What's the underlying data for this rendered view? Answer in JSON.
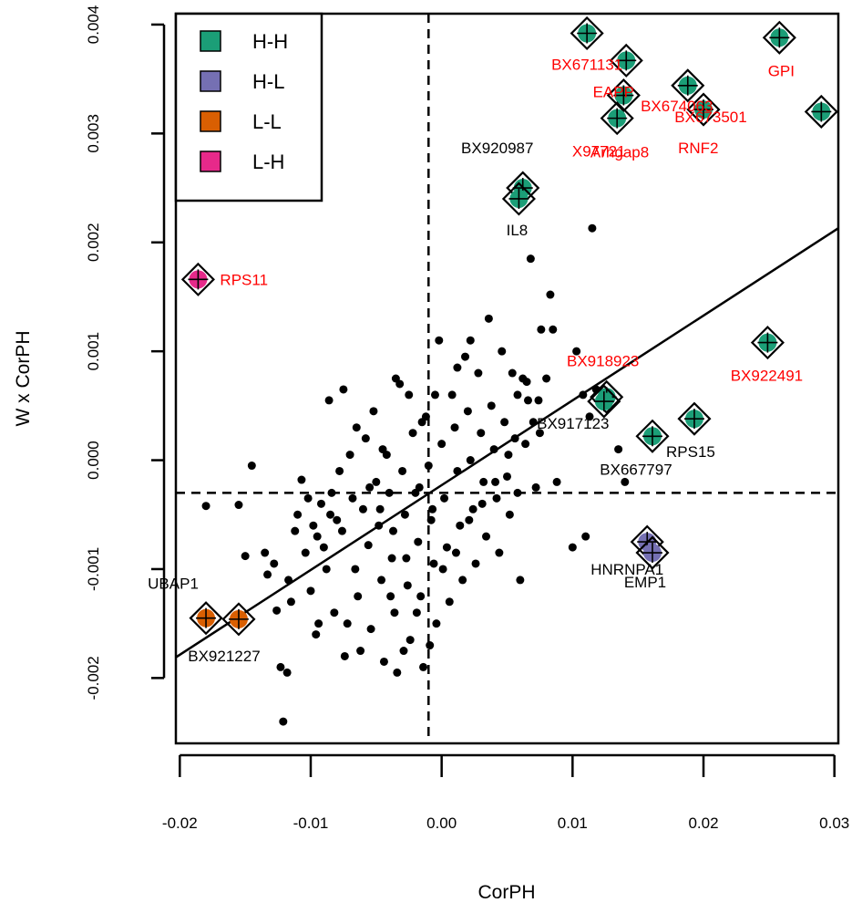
{
  "chart_data": {
    "type": "scatter",
    "xlabel": "CorPH",
    "ylabel": "W x CorPH",
    "xlim": [
      -0.0203,
      0.0303
    ],
    "ylim": [
      -0.0026,
      0.0041
    ],
    "x_ticks": [
      "-0.02",
      "-0.01",
      "0.00",
      "0.01",
      "0.02",
      "0.03"
    ],
    "x_tick_values": [
      -0.02,
      -0.01,
      0.0,
      0.01,
      0.02,
      0.03
    ],
    "y_ticks": [
      "-0.002",
      "-0.001",
      "0.000",
      "0.001",
      "0.002",
      "0.003",
      "0.004"
    ],
    "y_tick_values": [
      -0.002,
      -0.001,
      0.0,
      0.001,
      0.002,
      0.003,
      0.004
    ],
    "reference_lines": {
      "vertical_x": -0.001,
      "horizontal_y": -0.0003
    },
    "regression_line": {
      "x": [
        -0.0203,
        0.0303
      ],
      "y": [
        -0.00181,
        0.00213
      ]
    },
    "legend": {
      "position": "top-left",
      "items": [
        {
          "label": "H-H",
          "color": "#1b9e77"
        },
        {
          "label": "H-L",
          "color": "#7570b3"
        },
        {
          "label": "L-L",
          "color": "#d95f02"
        },
        {
          "label": "L-H",
          "color": "#e7298a"
        }
      ]
    },
    "label_colors": {
      "red": "#ff0000",
      "black": "#000000"
    },
    "highlighted": [
      {
        "group": "H-H",
        "x": 0.0111,
        "y": 0.00392,
        "label": "BX671131",
        "label_color": "red"
      },
      {
        "group": "H-H",
        "x": 0.0141,
        "y": 0.00367,
        "label": "EAPP",
        "label_color": "red"
      },
      {
        "group": "H-H",
        "x": 0.0139,
        "y": 0.00335,
        "label": "",
        "label_color": "red"
      },
      {
        "group": "H-H",
        "x": 0.0134,
        "y": 0.00314,
        "label": "X97721",
        "label_color": "red"
      },
      {
        "group": "H-H",
        "x": 0.0188,
        "y": 0.00344,
        "label": "BX674063",
        "label_color": "red"
      },
      {
        "group": "H-H",
        "x": 0.02,
        "y": 0.00322,
        "label": "BX673501",
        "label_color": "red"
      },
      {
        "group": "H-H",
        "x": 0.0258,
        "y": 0.00388,
        "label": "GPI",
        "label_color": "red"
      },
      {
        "group": "H-H",
        "x": 0.029,
        "y": 0.0032,
        "label": "",
        "label_color": "red"
      },
      {
        "group": "H-H",
        "x": 0.0062,
        "y": 0.0025,
        "label": "BX920987",
        "label_color": "black"
      },
      {
        "group": "H-H",
        "x": 0.0059,
        "y": 0.0024,
        "label": "IL8",
        "label_color": "black"
      },
      {
        "group": "H-H",
        "x": 0.0126,
        "y": 0.00058,
        "label": "BX918923",
        "label_color": "red"
      },
      {
        "group": "H-H",
        "x": 0.0124,
        "y": 0.00054,
        "label": "BX917123",
        "label_color": "black"
      },
      {
        "group": "H-H",
        "x": 0.0249,
        "y": 0.00108,
        "label": "BX922491",
        "label_color": "red"
      },
      {
        "group": "H-H",
        "x": 0.0193,
        "y": 0.00038,
        "label": "RPS15",
        "label_color": "black"
      },
      {
        "group": "H-H",
        "x": 0.0161,
        "y": 0.00022,
        "label": "BX667797",
        "label_color": "black"
      },
      {
        "group": "H-L",
        "x": 0.0157,
        "y": -0.00075,
        "label": "HNRNPA1",
        "label_color": "black"
      },
      {
        "group": "H-L",
        "x": 0.0161,
        "y": -0.00085,
        "label": "EMP1",
        "label_color": "black"
      },
      {
        "group": "L-H",
        "x": -0.0186,
        "y": 0.00166,
        "label": "RPS11",
        "label_color": "red"
      },
      {
        "group": "L-L",
        "x": -0.018,
        "y": -0.00145,
        "label": "UBAP1",
        "label_color": "black"
      },
      {
        "group": "L-L",
        "x": -0.0155,
        "y": -0.00146,
        "label": "BX921227",
        "label_color": "black"
      }
    ],
    "extra_labels": [
      {
        "text": "Arhgap8",
        "x": 0.0136,
        "y": 0.00278,
        "label_color": "red"
      },
      {
        "text": "RNF2",
        "x": 0.0196,
        "y": 0.00282,
        "label_color": "red"
      }
    ],
    "points": [
      [
        -0.018,
        -0.00042
      ],
      [
        -0.0155,
        -0.00041
      ],
      [
        -0.0145,
        -5e-05
      ],
      [
        -0.015,
        -0.00088
      ],
      [
        -0.0135,
        -0.00085
      ],
      [
        -0.0133,
        -0.00105
      ],
      [
        -0.0128,
        -0.00095
      ],
      [
        -0.0126,
        -0.00138
      ],
      [
        -0.0123,
        -0.0019
      ],
      [
        -0.0118,
        -0.00195
      ],
      [
        -0.0121,
        -0.0024
      ],
      [
        -0.0117,
        -0.0011
      ],
      [
        -0.0115,
        -0.0013
      ],
      [
        -0.0112,
        -0.00065
      ],
      [
        -0.011,
        -0.0005
      ],
      [
        -0.0107,
        -0.00018
      ],
      [
        -0.0104,
        -0.00085
      ],
      [
        -0.0102,
        -0.00035
      ],
      [
        -0.01,
        -0.0012
      ],
      [
        -0.0098,
        -0.0006
      ],
      [
        -0.0096,
        -0.0016
      ],
      [
        -0.0094,
        -0.0015
      ],
      [
        -0.0092,
        -0.0004
      ],
      [
        -0.009,
        -0.0008
      ],
      [
        -0.0088,
        -0.001
      ],
      [
        -0.0086,
        0.00055
      ],
      [
        -0.0084,
        -0.0003
      ],
      [
        -0.0082,
        -0.0014
      ],
      [
        -0.008,
        -0.00055
      ],
      [
        -0.0078,
        -0.0001
      ],
      [
        -0.0076,
        -0.00065
      ],
      [
        -0.0074,
        -0.0018
      ],
      [
        -0.0072,
        -0.0015
      ],
      [
        -0.007,
        5e-05
      ],
      [
        -0.0068,
        -0.00035
      ],
      [
        -0.0066,
        -0.001
      ],
      [
        -0.0064,
        -0.00125
      ],
      [
        -0.0062,
        -0.00175
      ],
      [
        -0.006,
        -0.00045
      ],
      [
        -0.0058,
        0.0002
      ],
      [
        -0.0056,
        -0.00078
      ],
      [
        -0.0054,
        -0.00155
      ],
      [
        -0.0052,
        0.00045
      ],
      [
        -0.005,
        -0.0002
      ],
      [
        -0.0048,
        -0.0006
      ],
      [
        -0.0046,
        -0.0011
      ],
      [
        -0.0044,
        -0.00185
      ],
      [
        -0.0042,
        5e-05
      ],
      [
        -0.004,
        -0.0003
      ],
      [
        -0.0038,
        -0.0009
      ],
      [
        -0.0036,
        -0.0014
      ],
      [
        -0.0034,
        -0.00195
      ],
      [
        -0.0032,
        0.0007
      ],
      [
        -0.003,
        -0.0001
      ],
      [
        -0.0028,
        -0.0005
      ],
      [
        -0.0026,
        -0.00115
      ],
      [
        -0.0024,
        -0.00165
      ],
      [
        -0.0022,
        0.00025
      ],
      [
        -0.002,
        -0.0003
      ],
      [
        -0.0018,
        -0.00075
      ],
      [
        -0.0016,
        -0.00125
      ],
      [
        -0.0014,
        -0.0019
      ],
      [
        -0.0012,
        0.0004
      ],
      [
        -0.001,
        -5e-05
      ],
      [
        -0.0008,
        -0.00055
      ],
      [
        -0.0006,
        -0.00095
      ],
      [
        -0.0004,
        -0.0015
      ],
      [
        -0.0002,
        0.0011
      ],
      [
        0.0,
        0.00015
      ],
      [
        0.0002,
        -0.00035
      ],
      [
        0.0004,
        -0.0008
      ],
      [
        0.0006,
        -0.0013
      ],
      [
        0.0008,
        0.0006
      ],
      [
        0.001,
        0.0003
      ],
      [
        0.0012,
        -0.0001
      ],
      [
        0.0014,
        -0.0006
      ],
      [
        0.0016,
        -0.0011
      ],
      [
        0.0018,
        0.00095
      ],
      [
        0.002,
        0.00045
      ],
      [
        0.0022,
        0.0
      ],
      [
        0.0024,
        -0.00045
      ],
      [
        0.0026,
        -0.00095
      ],
      [
        0.0028,
        0.0008
      ],
      [
        0.003,
        0.00025
      ],
      [
        0.0032,
        -0.0002
      ],
      [
        0.0034,
        -0.0007
      ],
      [
        0.0036,
        0.0013
      ],
      [
        0.0038,
        0.0005
      ],
      [
        0.004,
        0.0001
      ],
      [
        0.0042,
        -0.00035
      ],
      [
        0.0044,
        -0.00085
      ],
      [
        0.0046,
        0.001
      ],
      [
        0.0048,
        0.00035
      ],
      [
        0.005,
        -0.00015
      ],
      [
        0.0052,
        -0.0005
      ],
      [
        0.0054,
        0.0008
      ],
      [
        0.0056,
        0.0002
      ],
      [
        0.0058,
        -0.0003
      ],
      [
        0.006,
        -0.0011
      ],
      [
        0.0062,
        0.00075
      ],
      [
        0.0064,
        0.00015
      ],
      [
        0.0066,
        0.00055
      ],
      [
        0.0068,
        0.00185
      ],
      [
        0.007,
        0.00035
      ],
      [
        0.0072,
        -0.00025
      ],
      [
        0.0074,
        0.00055
      ],
      [
        0.0076,
        0.0012
      ],
      [
        0.008,
        0.00075
      ],
      [
        0.0083,
        0.00152
      ],
      [
        0.0085,
        0.0012
      ],
      [
        0.0088,
        -0.0002
      ],
      [
        0.01,
        -0.0008
      ],
      [
        0.0103,
        0.001
      ],
      [
        0.0108,
        0.0006
      ],
      [
        0.0113,
        0.0004
      ],
      [
        0.0115,
        0.00213
      ],
      [
        0.0118,
        0.00065
      ],
      [
        0.011,
        -0.0007
      ],
      [
        0.0135,
        0.0001
      ],
      [
        0.014,
        -0.0002
      ],
      [
        0.0065,
        0.00072
      ],
      [
        0.0058,
        0.0006
      ],
      [
        0.0075,
        0.00025
      ],
      [
        0.0022,
        0.0011
      ],
      [
        0.0012,
        0.00085
      ],
      [
        -0.0005,
        0.0006
      ],
      [
        -0.0015,
        0.00035
      ],
      [
        -0.0025,
        0.0006
      ],
      [
        -0.0035,
        0.00075
      ],
      [
        -0.0045,
        0.0001
      ],
      [
        -0.0055,
        -0.00025
      ],
      [
        -0.0065,
        0.0003
      ],
      [
        -0.0075,
        0.00065
      ],
      [
        -0.0085,
        -0.0005
      ],
      [
        -0.0095,
        -0.0007
      ],
      [
        -0.0039,
        -0.00125
      ],
      [
        -0.0029,
        -0.00175
      ],
      [
        -0.0019,
        -0.0014
      ],
      [
        -0.0009,
        -0.0017
      ],
      [
        0.0001,
        -0.001
      ],
      [
        0.0011,
        -0.00085
      ],
      [
        0.0021,
        -0.00055
      ],
      [
        0.0031,
        -0.0004
      ],
      [
        0.0041,
        -0.0002
      ],
      [
        0.0051,
        5e-05
      ],
      [
        -0.0047,
        -0.00045
      ],
      [
        -0.0037,
        -0.00065
      ],
      [
        -0.0027,
        -0.0009
      ],
      [
        -0.0017,
        -0.00025
      ],
      [
        -0.0007,
        -0.00045
      ]
    ]
  }
}
